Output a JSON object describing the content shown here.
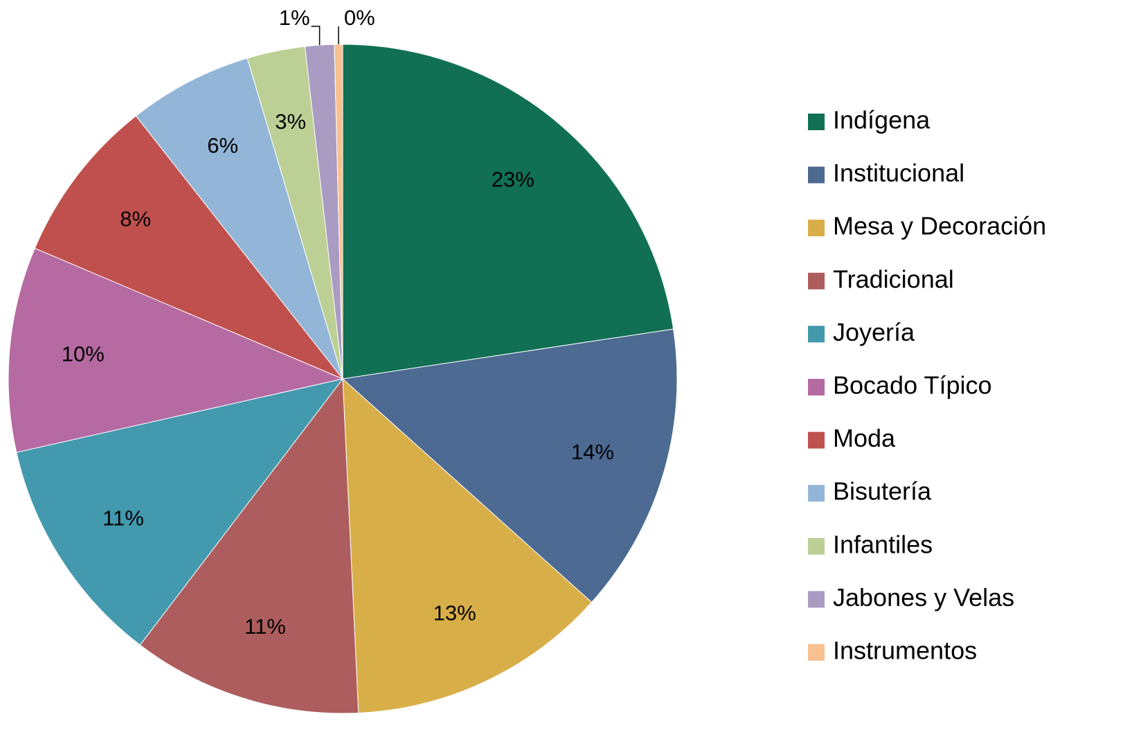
{
  "chart_data": {
    "type": "pie",
    "categories": [
      "Indígena",
      "Institucional",
      "Mesa y Decoración",
      "Tradicional",
      "Joyería",
      "Bocado Típico",
      "Moda",
      "Bisutería",
      "Infantiles",
      "Jabones y Velas",
      "Instrumentos"
    ],
    "values": [
      22.6,
      14.0,
      12.6,
      11.1,
      11.1,
      9.9,
      8.0,
      6.0,
      2.8,
      1.4,
      0.4
    ],
    "value_labels": [
      "23%",
      "14%",
      "13%",
      "11%",
      "11%",
      "10%",
      "8%",
      "6%",
      "3%",
      "1%",
      "0%"
    ],
    "colors": [
      "#117054",
      "#4d6a92",
      "#d8ae48",
      "#ad5d5d",
      "#4399ae",
      "#b56aa2",
      "#c0504d",
      "#93b6d8",
      "#bcd096",
      "#a99bc2",
      "#f9c090"
    ],
    "legend": "right"
  }
}
